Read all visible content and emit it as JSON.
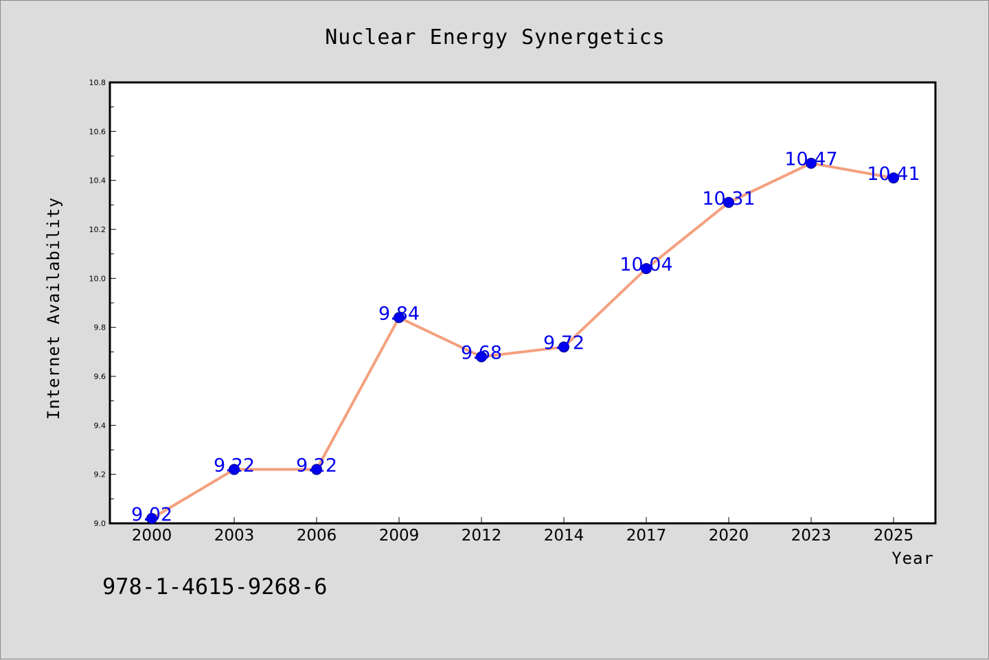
{
  "chart_data": {
    "type": "line",
    "title": "Nuclear Energy Synergetics",
    "xlabel": "Year",
    "ylabel": "Internet Availability",
    "categories": [
      "2000",
      "2003",
      "2006",
      "2009",
      "2012",
      "2014",
      "2017",
      "2020",
      "2023",
      "2025"
    ],
    "series": [
      {
        "values": [
          9.02,
          9.22,
          9.22,
          9.84,
          9.68,
          9.72,
          10.04,
          10.31,
          10.47,
          10.41
        ]
      }
    ],
    "data_labels": [
      "9.02",
      "9.22",
      "9.22",
      "9.84",
      "9.68",
      "9.72",
      "10.04",
      "10.31",
      "10.47",
      "10.41"
    ],
    "ylim": [
      9.0,
      10.8
    ],
    "yticks": [
      "9.0",
      "9.2",
      "9.4",
      "9.6",
      "9.8",
      "10.0",
      "10.2",
      "10.4",
      "10.6",
      "10.8"
    ],
    "grid": false,
    "legend": "none",
    "colors": {
      "line": "#f4a07f",
      "marker_fill": "#0000ee",
      "marker_edge": "#00008b",
      "data_label": "#0000ee",
      "figure_bg": "#dcdcdc",
      "plot_bg": "#ffffff"
    }
  },
  "footer": {
    "isbn": "978-1-4615-9268-6"
  }
}
